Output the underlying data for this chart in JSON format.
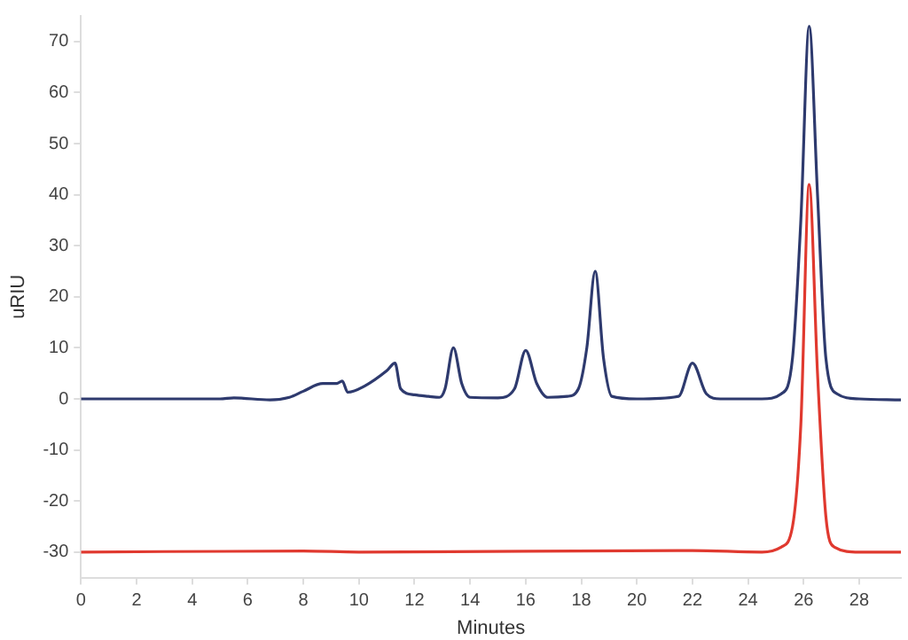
{
  "chart_data": {
    "type": "line",
    "xlabel": "Minutes",
    "ylabel": "uRIU",
    "xlim": [
      0,
      29.5
    ],
    "xticks": [
      0,
      2,
      4,
      6,
      8,
      10,
      12,
      14,
      16,
      18,
      20,
      22,
      24,
      26,
      28
    ],
    "ylim": [
      -35,
      75
    ],
    "yticks": [
      -30,
      -20,
      -10,
      0,
      10,
      20,
      30,
      40,
      50,
      60,
      70
    ],
    "grid": false,
    "legend": false,
    "marker": "none",
    "line_style": "solid",
    "series": [
      {
        "color": "#2e3a6e",
        "x": [
          0,
          5,
          5.5,
          6.8,
          7.5,
          8,
          8.7,
          9.2,
          9.4,
          9.6,
          10.2,
          11,
          11.3,
          11.5,
          12,
          12.5,
          12.9,
          13.1,
          13.4,
          13.7,
          14,
          15,
          15.6,
          16,
          16.4,
          16.8,
          17.5,
          17.9,
          18.2,
          18.5,
          18.8,
          19.1,
          20,
          21.5,
          22,
          22.5,
          23,
          24.5,
          25.2,
          25.6,
          25.9,
          26.2,
          26.5,
          26.8,
          27.2,
          28,
          29.5
        ],
        "values": [
          0,
          0,
          0.2,
          -0.2,
          0.3,
          1.5,
          3,
          3,
          3.5,
          1.3,
          2.5,
          5.5,
          7,
          2,
          0.8,
          0.5,
          0.3,
          2,
          10,
          3,
          0.3,
          0.2,
          2,
          9.5,
          3,
          0.3,
          0.5,
          2,
          10,
          25,
          8,
          0.5,
          0,
          0.5,
          7,
          1,
          0,
          0,
          1,
          8,
          35,
          73,
          40,
          8,
          1,
          0,
          -0.2
        ]
      },
      {
        "color": "#e0392f",
        "x": [
          0,
          8,
          10,
          22,
          24.5,
          25.2,
          25.6,
          25.9,
          26.2,
          26.5,
          26.8,
          27.1,
          28,
          29.5
        ],
        "values": [
          -30,
          -29.8,
          -30,
          -29.7,
          -30,
          -29,
          -25,
          -5,
          42,
          5,
          -23,
          -29,
          -30,
          -30
        ]
      }
    ]
  }
}
